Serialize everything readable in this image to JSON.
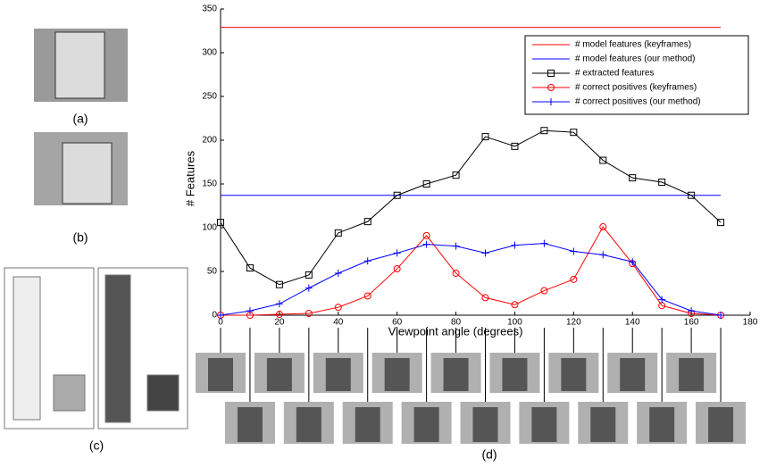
{
  "panels": {
    "a": "(a)",
    "b": "(b)",
    "c": "(c)",
    "d": "(d)"
  },
  "chart_data": {
    "type": "line",
    "xlabel": "Viewpoint angle (degrees)",
    "ylabel": "# Features",
    "x": [
      0,
      10,
      20,
      30,
      40,
      50,
      60,
      70,
      80,
      90,
      100,
      110,
      120,
      130,
      140,
      150,
      160,
      170
    ],
    "xlim": [
      0,
      180
    ],
    "xticks": [
      0,
      20,
      40,
      60,
      80,
      100,
      120,
      140,
      160,
      180
    ],
    "ylim": [
      0,
      350
    ],
    "yticks": [
      0,
      50,
      100,
      150,
      200,
      250,
      300,
      350
    ],
    "legend": "upper right",
    "series": [
      {
        "name": "# model features (keyframes)",
        "color": "#ff0000",
        "marker": "none",
        "values": [
          329,
          329,
          329,
          329,
          329,
          329,
          329,
          329,
          329,
          329,
          329,
          329,
          329,
          329,
          329,
          329,
          329,
          329
        ]
      },
      {
        "name": "# model features (our method)",
        "color": "#0000ff",
        "marker": "none",
        "values": [
          137,
          137,
          137,
          137,
          137,
          137,
          137,
          137,
          137,
          137,
          137,
          137,
          137,
          137,
          137,
          137,
          137,
          137
        ]
      },
      {
        "name": "# extracted features",
        "color": "#000000",
        "marker": "square",
        "values": [
          106,
          54,
          35,
          46,
          94,
          107,
          137,
          150,
          160,
          204,
          193,
          211,
          209,
          177,
          157,
          152,
          137,
          106
        ]
      },
      {
        "name": "# correct positives (keyframes)",
        "color": "#ff0000",
        "marker": "circle",
        "values": [
          0,
          0,
          1,
          2,
          9,
          22,
          53,
          91,
          48,
          20,
          12,
          28,
          41,
          101,
          59,
          11,
          2,
          0
        ]
      },
      {
        "name": "# correct positives (our method)",
        "color": "#0000ff",
        "marker": "plus",
        "values": [
          0,
          5,
          13,
          31,
          48,
          62,
          71,
          81,
          79,
          71,
          80,
          82,
          73,
          69,
          61,
          18,
          5,
          0
        ]
      }
    ]
  }
}
